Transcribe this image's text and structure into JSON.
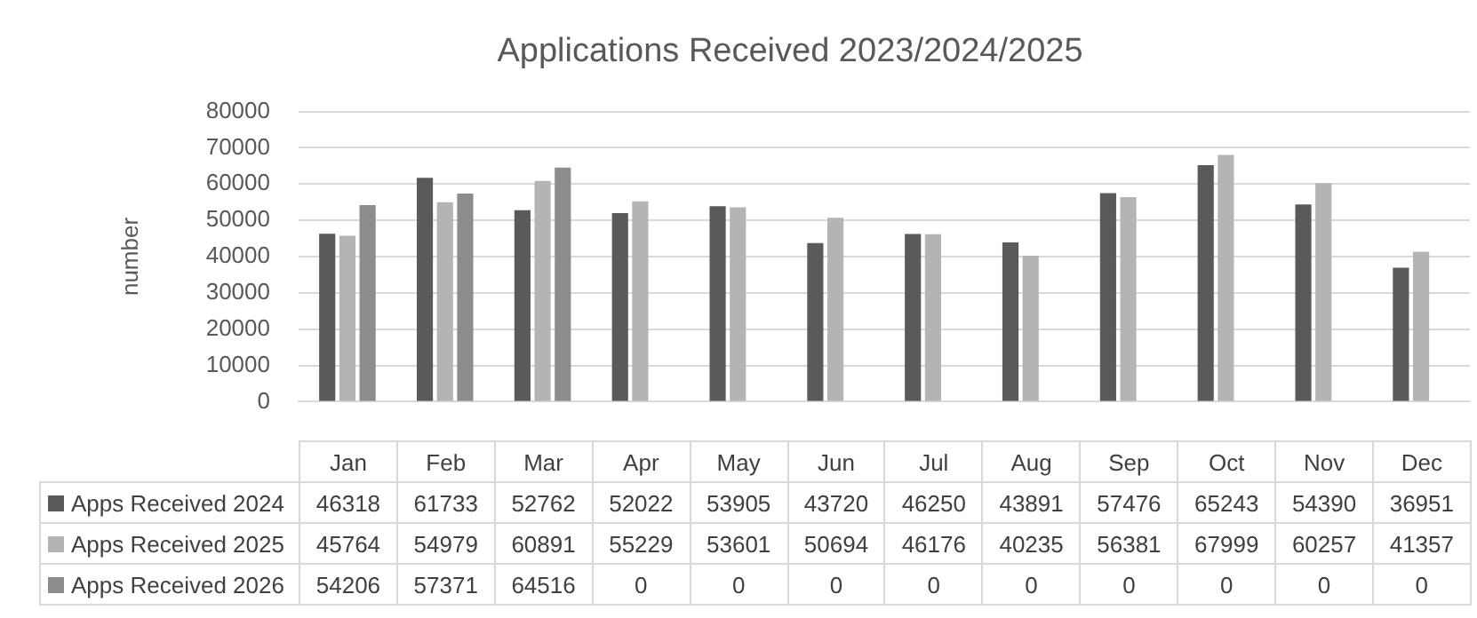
{
  "chart_data": {
    "type": "bar",
    "title": "Applications Received 2023/2024/2025",
    "ylabel": "number",
    "categories": [
      "Jan",
      "Feb",
      "Mar",
      "Apr",
      "May",
      "Jun",
      "Jul",
      "Aug",
      "Sep",
      "Oct",
      "Nov",
      "Dec"
    ],
    "series": [
      {
        "name": "Apps Received 2024",
        "color": "#5a5a5a",
        "values": [
          46318,
          61733,
          52762,
          52022,
          53905,
          43720,
          46250,
          43891,
          57476,
          65243,
          54390,
          36951
        ]
      },
      {
        "name": "Apps Received 2025",
        "color": "#b4b4b4",
        "values": [
          45764,
          54979,
          60891,
          55229,
          53601,
          50694,
          46176,
          40235,
          56381,
          67999,
          60257,
          41357
        ]
      },
      {
        "name": "Apps Received 2026",
        "color": "#8c8c8c",
        "values": [
          54206,
          57371,
          64516,
          0,
          0,
          0,
          0,
          0,
          0,
          0,
          0,
          0
        ]
      }
    ],
    "ylim": [
      0,
      80000
    ],
    "yticks": [
      0,
      10000,
      20000,
      30000,
      40000,
      50000,
      60000,
      70000,
      80000
    ],
    "grid": "y",
    "legend": "bottom",
    "data_labels": true
  }
}
